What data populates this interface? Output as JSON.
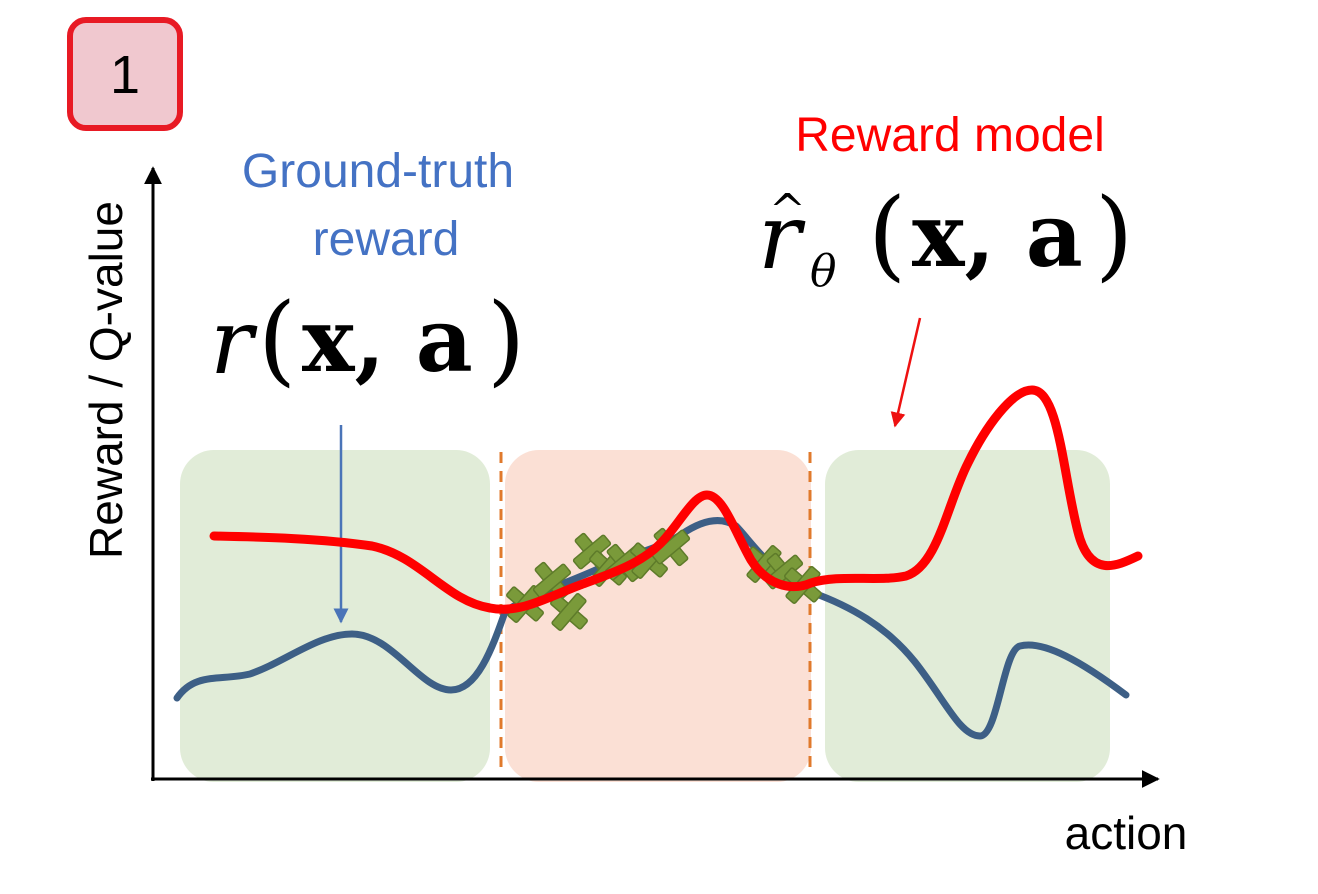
{
  "badge": {
    "label": "1",
    "fill_color": "#f0c8cf",
    "border_color": "#e81a24"
  },
  "axes": {
    "ylabel": "Reward / Q-value",
    "xlabel": "action",
    "color": "#000000"
  },
  "labels": {
    "ground_truth": {
      "line1": "Ground-truth",
      "line2": "reward",
      "formula_r": "r",
      "formula_open": "(",
      "formula_args": "x, a",
      "formula_close": ")",
      "color": "#4472c4"
    },
    "reward_model": {
      "line1": "Reward model",
      "formula_hat": "^",
      "formula_r": "r",
      "formula_sub": "θ",
      "formula_open": "(",
      "formula_args": "x, a",
      "formula_close": ")",
      "color": "#ff0000"
    }
  },
  "regions": [
    {
      "name": "left",
      "color": "#e1ecd8"
    },
    {
      "name": "middle",
      "color": "#fbe0d5"
    },
    {
      "name": "right",
      "color": "#e1ecd8"
    }
  ],
  "divider_color": "#e07a2c",
  "series": {
    "ground_truth_color": "#3d5f86",
    "reward_model_color": "#ff0000",
    "data_point_color": "#7a9a3a",
    "data_point_stroke": "#5e7b2a"
  }
}
